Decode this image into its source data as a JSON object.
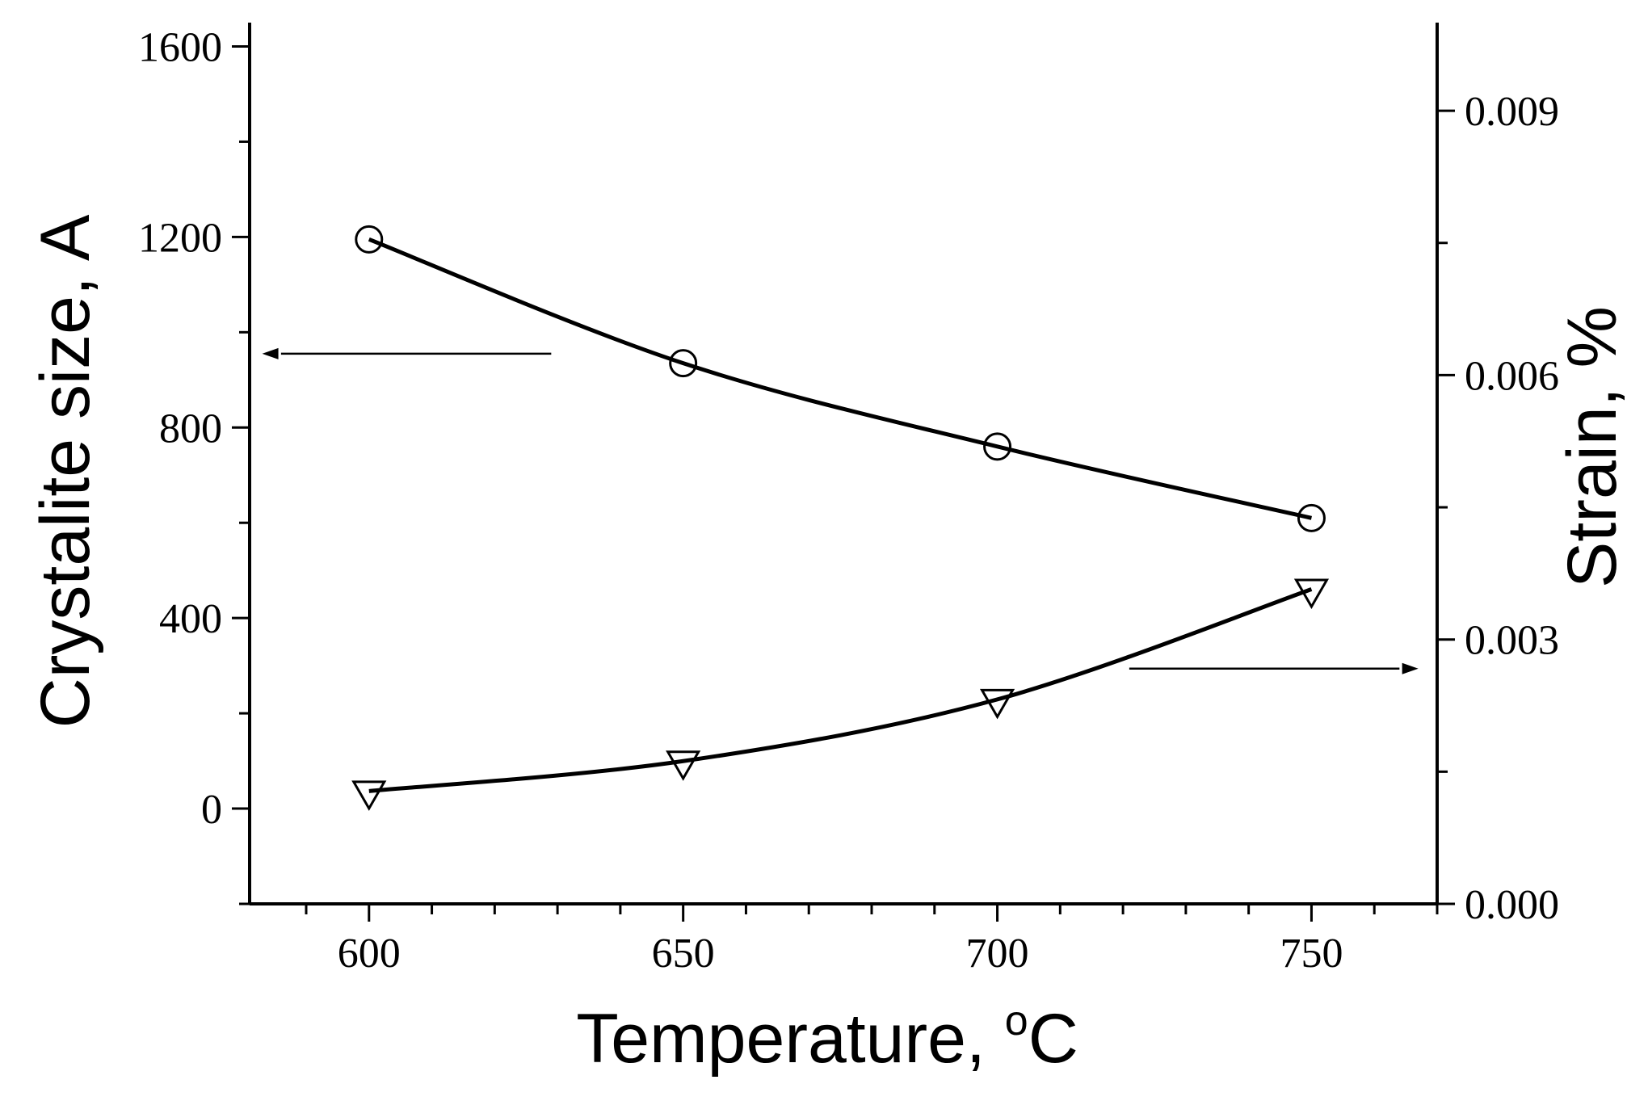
{
  "chart_data": {
    "type": "line",
    "xlabel": "Temperature, ",
    "xlabel_sup": "o",
    "xlabel_unit": "C",
    "ylabel": "Crystalite size, A",
    "y2label": "Strain, %",
    "xlim": [
      581,
      770
    ],
    "ylim": [
      -200,
      1650
    ],
    "y2lim": [
      0.0,
      0.01
    ],
    "x_ticks": [
      600,
      650,
      700,
      750
    ],
    "y_ticks": [
      0,
      400,
      800,
      1200,
      1600
    ],
    "y2_ticks": [
      "0.000",
      "0.003",
      "0.006",
      "0.009"
    ],
    "grid": false,
    "series": [
      {
        "axis": "left",
        "marker": "circle",
        "x": [
          600,
          650,
          700,
          750
        ],
        "y": [
          1195,
          935,
          760,
          610
        ]
      },
      {
        "axis": "right",
        "marker": "triangle-down",
        "x": [
          600,
          650,
          700,
          750
        ],
        "y": [
          0.00128,
          0.00162,
          0.00232,
          0.00357
        ]
      }
    ],
    "annotations": [
      {
        "type": "arrow",
        "direction": "left",
        "points_to": "left-axis"
      },
      {
        "type": "arrow",
        "direction": "right",
        "points_to": "right-axis"
      }
    ]
  }
}
